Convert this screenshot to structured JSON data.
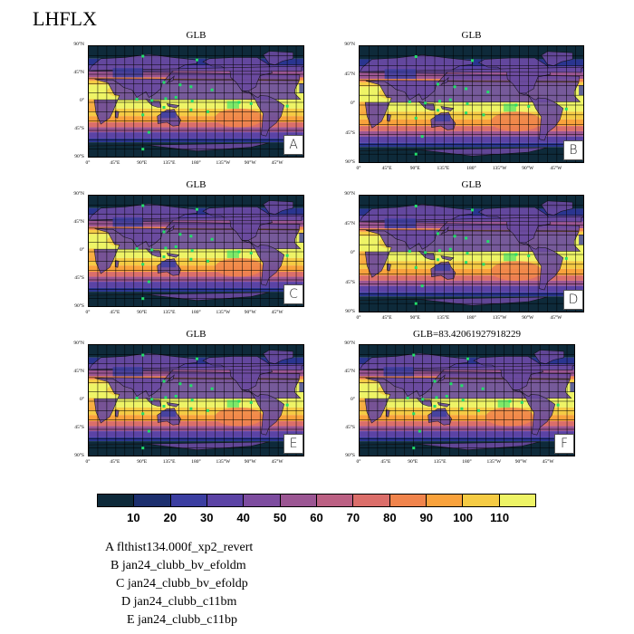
{
  "title": "LHFLX",
  "chart_data": {
    "type": "heatmap",
    "variable": "LHFLX",
    "y_ticks": [
      "90°N",
      "45°N",
      "0°",
      "45°S",
      "90°S"
    ],
    "x_ticks": [
      "0°",
      "45°E",
      "90°E",
      "135°E",
      "180°",
      "135°W",
      "90°W",
      "45°W"
    ],
    "panels": [
      {
        "title": "GLB",
        "label": "A"
      },
      {
        "title": "GLB",
        "label": "B"
      },
      {
        "title": "GLB",
        "label": "C"
      },
      {
        "title": "GLB",
        "label": "D"
      },
      {
        "title": "GLB",
        "label": "E"
      },
      {
        "title": "GLB=83.42061927918229",
        "label": "F"
      }
    ],
    "colorbar": {
      "colors": [
        "#0e2a3a",
        "#1c2f6e",
        "#3b3ea1",
        "#5b43a5",
        "#7d4c9f",
        "#9b5693",
        "#bb6083",
        "#db6e6a",
        "#f0844c",
        "#f9a23c",
        "#f5cb44",
        "#eef466"
      ],
      "labels": [
        "10",
        "20",
        "30",
        "40",
        "50",
        "60",
        "70",
        "80",
        "90",
        "100",
        "110"
      ]
    }
  },
  "legend": [
    {
      "letter": "A",
      "name": "flthist134.000f_xp2_revert"
    },
    {
      "letter": "B",
      "name": "jan24_clubb_bv_efoldm"
    },
    {
      "letter": "C",
      "name": "jan24_clubb_bv_efoldp"
    },
    {
      "letter": "D",
      "name": "jan24_clubb_c11bm"
    },
    {
      "letter": "E",
      "name": "jan24_clubb_c11bp"
    }
  ]
}
